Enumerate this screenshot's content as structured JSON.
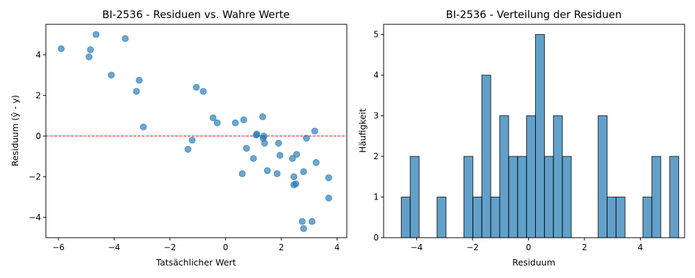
{
  "chart_data": [
    {
      "type": "scatter",
      "title": "BI-2536 - Residuen vs. Wahre Werte",
      "xlabel": "Tatsächlicher Wert",
      "ylabel": "Residuum (ŷ - y)",
      "xlim": [
        -6.45,
        4.35
      ],
      "ylim": [
        -5.0,
        5.5
      ],
      "xticks": [
        -6,
        -4,
        -2,
        0,
        2,
        4
      ],
      "yticks": [
        -4,
        -2,
        0,
        2,
        4
      ],
      "color": "#1f77b4",
      "reference_line": {
        "y": 0,
        "color": "#ff0000",
        "style": "dashed"
      },
      "points": [
        [
          -5.9,
          4.3
        ],
        [
          -4.65,
          5.0
        ],
        [
          -4.85,
          4.25
        ],
        [
          -4.9,
          3.9
        ],
        [
          -3.6,
          4.8
        ],
        [
          -4.1,
          3.0
        ],
        [
          -3.1,
          2.75
        ],
        [
          -3.2,
          2.2
        ],
        [
          -2.95,
          0.45
        ],
        [
          -1.05,
          2.4
        ],
        [
          -0.8,
          2.2
        ],
        [
          -0.45,
          0.9
        ],
        [
          -0.3,
          0.65
        ],
        [
          -1.35,
          -0.65
        ],
        [
          -1.2,
          -0.2
        ],
        [
          0.35,
          0.65
        ],
        [
          0.65,
          0.8
        ],
        [
          1.1,
          0.05
        ],
        [
          1.12,
          0.1
        ],
        [
          1.33,
          0.95
        ],
        [
          1.35,
          -0.1
        ],
        [
          1.37,
          0.0
        ],
        [
          1.4,
          -0.35
        ],
        [
          0.75,
          -0.6
        ],
        [
          1.0,
          -1.1
        ],
        [
          0.6,
          -1.85
        ],
        [
          1.5,
          -1.7
        ],
        [
          1.85,
          -1.85
        ],
        [
          1.9,
          -0.35
        ],
        [
          1.95,
          -0.95
        ],
        [
          2.4,
          -1.1
        ],
        [
          2.55,
          -0.9
        ],
        [
          2.45,
          -2.0
        ],
        [
          2.45,
          -2.4
        ],
        [
          2.52,
          -2.35
        ],
        [
          2.8,
          -1.75
        ],
        [
          2.9,
          -0.1
        ],
        [
          3.2,
          0.25
        ],
        [
          3.25,
          -1.3
        ],
        [
          3.7,
          -2.05
        ],
        [
          3.7,
          -3.05
        ],
        [
          2.75,
          -4.2
        ],
        [
          2.8,
          -4.55
        ],
        [
          3.1,
          -4.2
        ]
      ]
    },
    {
      "type": "bar",
      "title": "BI-2536 - Verteilung der Residuen",
      "xlabel": "Residuum",
      "ylabel": "Häufigkeit",
      "xlim": [
        -5.18,
        5.58
      ],
      "ylim": [
        0,
        5.25
      ],
      "xticks": [
        -4,
        -2,
        0,
        2,
        4
      ],
      "yticks": [
        0,
        1,
        2,
        3,
        4,
        5
      ],
      "color": "#1f77b4",
      "bin_start": -4.55,
      "bin_width": 0.32,
      "counts": [
        1,
        2,
        0,
        0,
        1,
        0,
        0,
        2,
        1,
        4,
        1,
        3,
        2,
        2,
        3,
        5,
        2,
        3,
        2,
        0,
        0,
        0,
        3,
        1,
        1,
        0,
        0,
        1,
        2,
        0,
        2
      ]
    }
  ]
}
